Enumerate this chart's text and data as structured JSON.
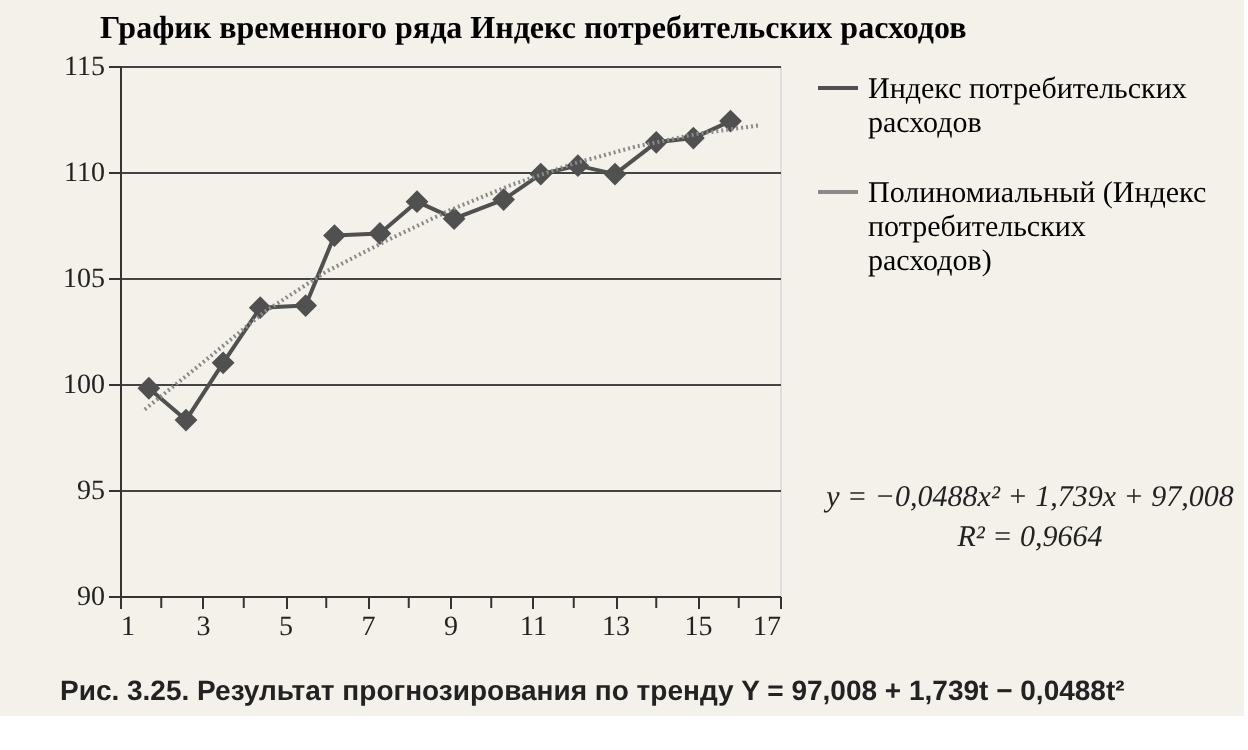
{
  "chart_data": {
    "type": "line",
    "title": "График временного ряда Индекс потребительских расходов",
    "xlim": [
      1,
      17
    ],
    "xticks": [
      1,
      {
        "value": 2,
        "label": null
      },
      3,
      {
        "value": 4,
        "label": null
      },
      5,
      {
        "value": 6,
        "label": null
      },
      7,
      {
        "value": 8,
        "label": null
      },
      9,
      {
        "value": 10,
        "label": null
      },
      11,
      {
        "value": 12,
        "label": null
      },
      13,
      {
        "value": 14,
        "label": null
      },
      15,
      {
        "value": 16,
        "label": null
      },
      17
    ],
    "ylim": [
      90,
      115
    ],
    "yticks": [
      90,
      95,
      100,
      105,
      110,
      115
    ],
    "grid": "y",
    "legend": "right",
    "series": [
      {
        "name": "Индекс потребительских расходов",
        "color": "#505050",
        "marker": "diamond",
        "line_style": "solid",
        "x": [
          1.7,
          2.6,
          3.5,
          4.4,
          5.5,
          6.2,
          7.3,
          8.2,
          9.1,
          10.3,
          11.2,
          12.1,
          13.0,
          14.0,
          14.9,
          15.8
        ],
        "values": [
          99.8,
          98.3,
          101.0,
          103.6,
          103.7,
          107.0,
          107.1,
          108.6,
          107.8,
          108.7,
          109.9,
          110.3,
          109.9,
          111.4,
          111.6,
          112.4
        ]
      },
      {
        "name": "Полиномиальный (Индекс потребительских расходов)",
        "type": "line",
        "color": "#8a8a8a",
        "marker": "none",
        "line_style": "dotted",
        "x": [
          1.6,
          3.0,
          4.5,
          6.0,
          7.5,
          9.0,
          10.5,
          12.0,
          13.5,
          15.0,
          16.5
        ],
        "values": [
          98.8,
          101.0,
          103.4,
          105.3,
          106.8,
          108.2,
          109.4,
          110.4,
          111.2,
          111.8,
          112.2
        ]
      }
    ],
    "annotations": [
      "y = −0,0488x² + 1,739x + 97,008",
      "R² = 0,9664",
      "Рис. 3.25. Результат прогнозирования по тренду Y = 97,008 + 1,739t − 0,0488t²"
    ]
  }
}
